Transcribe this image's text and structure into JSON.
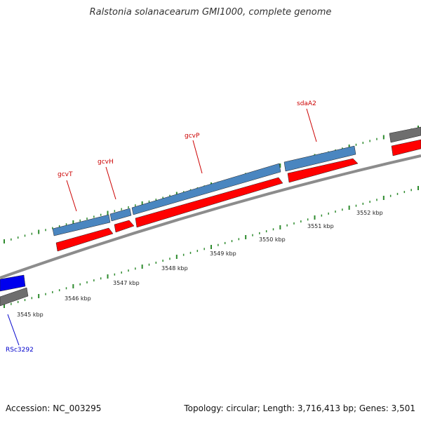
{
  "title": "Ralstonia solanacearum GMI1000, complete genome",
  "footer": {
    "accession": "Accession: NC_003295",
    "summary": "Topology: circular; Length: 3,716,413 bp; Genes: 3,501"
  },
  "colors": {
    "backbone": "#8c8c8c",
    "tick": "#2e8b2e",
    "gene_blue": "#4a86c0",
    "gene_red": "#ff0000",
    "gene_dark_blue": "#0000ee",
    "gene_gray": "#6e6e6e",
    "label_red": "#cc0000",
    "label_blue": "#0000cc"
  },
  "scale": {
    "unit": "kbp",
    "labels": [
      "3545 kbp",
      "3546 kbp",
      "3547 kbp",
      "3548 kbp",
      "3549 kbp",
      "3550 kbp",
      "3551 kbp",
      "3552 kbp"
    ]
  },
  "genes": [
    {
      "name": "gcvT",
      "strand": "forward",
      "color": "gene_blue"
    },
    {
      "name": "gcvH",
      "strand": "forward",
      "color": "gene_blue"
    },
    {
      "name": "gcvP",
      "strand": "forward",
      "color": "gene_blue"
    },
    {
      "name": "sdaA2",
      "strand": "forward",
      "color": "gene_blue"
    },
    {
      "name": "RSc3292",
      "strand": "forward",
      "color": "gene_dark_blue"
    }
  ]
}
